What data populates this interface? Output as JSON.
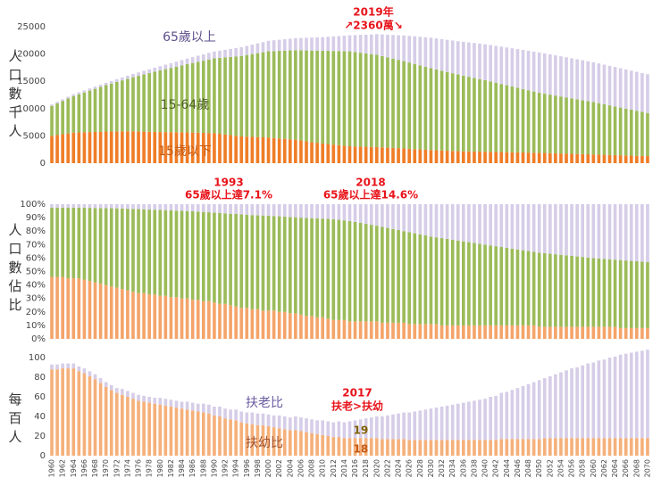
{
  "chart_data": [
    {
      "type": "bar",
      "stacked": true,
      "y_label": "人口數千人",
      "ylim": [
        0,
        25000
      ],
      "yticks": [
        0,
        5000,
        10000,
        15000,
        20000,
        25000
      ],
      "annotations": [
        "2019年",
        "↗2360萬↘"
      ],
      "series": [
        {
          "name": "15歲以下",
          "color": "#ef7d27",
          "values": [
            5000,
            5150,
            5300,
            5450,
            5600,
            5630,
            5660,
            5700,
            5730,
            5770,
            5800,
            5810,
            5820,
            5830,
            5840,
            5850,
            5820,
            5790,
            5760,
            5730,
            5700,
            5690,
            5680,
            5670,
            5660,
            5650,
            5620,
            5590,
            5560,
            5530,
            5500,
            5380,
            5260,
            5140,
            5020,
            4900,
            4860,
            4820,
            4780,
            4740,
            4700,
            4620,
            4540,
            4460,
            4380,
            4300,
            4160,
            4020,
            3880,
            3740,
            3600,
            3500,
            3400,
            3300,
            3200,
            3100,
            3070,
            3040,
            3010,
            2980,
            2950,
            2900,
            2850,
            2800,
            2750,
            2700,
            2640,
            2580,
            2520,
            2460,
            2400,
            2360,
            2320,
            2280,
            2240,
            2200,
            2180,
            2160,
            2140,
            2120,
            2100,
            2080,
            2060,
            2040,
            2020,
            2000,
            1980,
            1960,
            1940,
            1920,
            1900,
            1870,
            1840,
            1810,
            1780,
            1750,
            1720,
            1690,
            1660,
            1630,
            1600,
            1570,
            1540,
            1510,
            1480,
            1450,
            1420,
            1390,
            1360,
            1330,
            1300
          ]
        },
        {
          "name": "15-64歲",
          "color": "#9bbb59",
          "values": [
            5500,
            5800,
            6100,
            6400,
            6700,
            7000,
            7300,
            7600,
            7900,
            8200,
            8500,
            8780,
            9060,
            9340,
            9620,
            9900,
            10180,
            10460,
            10740,
            11020,
            11300,
            11540,
            11780,
            12020,
            12260,
            12500,
            12740,
            12980,
            13220,
            13460,
            13700,
            13910,
            14120,
            14330,
            14540,
            14750,
            14960,
            15170,
            15380,
            15590,
            15800,
            15920,
            16040,
            16160,
            16280,
            16400,
            16520,
            16640,
            16760,
            16880,
            17000,
            17080,
            17160,
            17240,
            17320,
            17400,
            17300,
            17200,
            17100,
            17000,
            16900,
            16720,
            16540,
            16360,
            16180,
            16000,
            15800,
            15600,
            15400,
            15200,
            15000,
            14810,
            14620,
            14430,
            14240,
            14050,
            13860,
            13670,
            13480,
            13290,
            13100,
            12890,
            12680,
            12470,
            12260,
            12050,
            11840,
            11630,
            11420,
            11210,
            11000,
            10860,
            10720,
            10580,
            10440,
            10300,
            10160,
            10020,
            9880,
            9740,
            9600,
            9430,
            9260,
            9090,
            8920,
            8750,
            8580,
            8410,
            8240,
            8070,
            7900
          ]
        },
        {
          "name": "65歲以上",
          "color": "#d6cde8",
          "values": [
            270,
            287,
            304,
            321,
            338,
            355,
            372,
            389,
            406,
            423,
            440,
            473,
            506,
            539,
            572,
            605,
            638,
            671,
            704,
            737,
            770,
            820,
            870,
            920,
            970,
            1020,
            1070,
            1120,
            1170,
            1220,
            1270,
            1335,
            1400,
            1465,
            1530,
            1595,
            1660,
            1725,
            1790,
            1855,
            1920,
            1977,
            2034,
            2091,
            2148,
            2205,
            2262,
            2319,
            2376,
            2433,
            2490,
            2580,
            2670,
            2760,
            2850,
            2940,
            3100,
            3270,
            3430,
            3610,
            3790,
            3970,
            4150,
            4330,
            4510,
            4700,
            4880,
            5060,
            5240,
            5420,
            5600,
            5700,
            5800,
            5900,
            6000,
            6100,
            6200,
            6300,
            6400,
            6500,
            6600,
            6680,
            6760,
            6840,
            6920,
            7000,
            7080,
            7160,
            7240,
            7320,
            7400,
            7390,
            7380,
            7370,
            7360,
            7350,
            7340,
            7330,
            7320,
            7310,
            7300,
            7280,
            7260,
            7240,
            7220,
            7200,
            7180,
            7160,
            7140,
            7120,
            7100
          ]
        }
      ]
    },
    {
      "type": "bar",
      "stacked": true,
      "y_label": "人口數佔比",
      "ylim": [
        0,
        100
      ],
      "yticks": [
        {
          "value": 0,
          "label": "0%"
        },
        {
          "value": 10,
          "label": "10%"
        },
        {
          "value": 20,
          "label": "20%"
        },
        {
          "value": 30,
          "label": "30%"
        },
        {
          "value": 40,
          "label": "40%"
        },
        {
          "value": 50,
          "label": "50%"
        },
        {
          "value": 60,
          "label": "60%"
        },
        {
          "value": 70,
          "label": "70%"
        },
        {
          "value": 80,
          "label": "80%"
        },
        {
          "value": 90,
          "label": "90%"
        },
        {
          "value": 100,
          "label": "100%"
        }
      ],
      "annotations": [
        "1993",
        "65歲以上達7.1%",
        "2018",
        "65歲以上達14.6%"
      ],
      "series": [
        {
          "color": "#f4a46a",
          "values": [
            46,
            46,
            46,
            45,
            45,
            45,
            44,
            43,
            42,
            41,
            40,
            39,
            38,
            37,
            36,
            35,
            34,
            34,
            33,
            33,
            32,
            32,
            31,
            31,
            30,
            30,
            29,
            29,
            28,
            28,
            27,
            26,
            26,
            25,
            24,
            23,
            23,
            22,
            22,
            21,
            21,
            21,
            20,
            20,
            19,
            19,
            18,
            17,
            17,
            16,
            16,
            15,
            14,
            14,
            14,
            13,
            13,
            13,
            13,
            13,
            13,
            12,
            12,
            12,
            12,
            12,
            11,
            11,
            11,
            11,
            11,
            11,
            10,
            10,
            10,
            10,
            10,
            10,
            10,
            10,
            10,
            10,
            10,
            10,
            10,
            10,
            10,
            10,
            10,
            10,
            9,
            9,
            9,
            9,
            9,
            9,
            9,
            9,
            9,
            9,
            9,
            9,
            9,
            9,
            9,
            8,
            8,
            8,
            8,
            8,
            8
          ]
        },
        {
          "color": "#9bbb59",
          "values": [
            51.5,
            51.5,
            51.5,
            52.5,
            52.5,
            52.4,
            53.4,
            54.3,
            55.2,
            56.1,
            57,
            58,
            58.9,
            59.8,
            60.6,
            61.5,
            62.4,
            62.2,
            63,
            62.9,
            63.7,
            63.6,
            64.4,
            64.2,
            65.1,
            64.9,
            65.7,
            65.5,
            66.2,
            66,
            66.8,
            67.5,
            67.2,
            67.9,
            68.7,
            69.4,
            69.1,
            69.9,
            69.7,
            70.6,
            70.4,
            70.2,
            71,
            70.8,
            71.5,
            71.3,
            72,
            72.8,
            72.6,
            73.4,
            73.3,
            74.1,
            74.8,
            74.5,
            74,
            74.5,
            73.8,
            73.1,
            72.4,
            71.7,
            71,
            71.2,
            70.4,
            69.6,
            68.8,
            68,
            68.2,
            67.4,
            66.6,
            65.8,
            65,
            64.4,
            64.8,
            64.2,
            63.6,
            63,
            62.4,
            61.8,
            61.2,
            60.6,
            60,
            59.4,
            58.8,
            58.2,
            57.6,
            57,
            56.4,
            55.8,
            55.2,
            54.6,
            55,
            54.6,
            54.2,
            53.8,
            53.4,
            53,
            52.6,
            52.2,
            51.8,
            51.4,
            51,
            50.7,
            50.4,
            50.1,
            49.8,
            50.5,
            50.2,
            49.9,
            49.6,
            49.3,
            49
          ]
        },
        {
          "color": "#d6cde8",
          "values": [
            2.5,
            2.5,
            2.5,
            2.5,
            2.5,
            2.6,
            2.6,
            2.7,
            2.8,
            2.9,
            3,
            3,
            3.1,
            3.2,
            3.4,
            3.5,
            3.6,
            3.8,
            4,
            4.1,
            4.3,
            4.4,
            4.6,
            4.8,
            4.9,
            5.1,
            5.3,
            5.5,
            5.8,
            6,
            6.2,
            6.5,
            6.8,
            7.1,
            7.3,
            7.6,
            7.9,
            8.1,
            8.3,
            8.4,
            8.6,
            8.8,
            9,
            9.2,
            9.5,
            9.7,
            10,
            10.2,
            10.4,
            10.6,
            10.7,
            10.9,
            11.2,
            11.5,
            12,
            12.5,
            13.2,
            13.9,
            14.6,
            15.3,
            16,
            16.8,
            17.6,
            18.4,
            19.2,
            20,
            20.8,
            21.6,
            22.4,
            23.2,
            24,
            24.6,
            25.2,
            25.8,
            26.4,
            27,
            27.6,
            28.2,
            28.8,
            29.4,
            30,
            30.6,
            31.2,
            31.8,
            32.4,
            33,
            33.6,
            34.2,
            34.8,
            35.4,
            36,
            36.4,
            36.8,
            37.2,
            37.6,
            38,
            38.4,
            38.8,
            39.2,
            39.6,
            40,
            40.3,
            40.6,
            40.9,
            41.2,
            41.5,
            41.8,
            42.1,
            42.4,
            42.7,
            43
          ]
        }
      ]
    },
    {
      "type": "bar",
      "stacked": true,
      "y_label": "每百人",
      "ylim": [
        0,
        110
      ],
      "yticks": [
        0,
        20,
        40,
        60,
        80,
        100
      ],
      "annotations": [
        "2017",
        "扶老>扶幼",
        "19",
        "18"
      ],
      "categories": [
        "1960",
        null,
        "1962",
        null,
        "1964",
        null,
        "1966",
        null,
        "1968",
        null,
        "1970",
        null,
        "1972",
        null,
        "1974",
        null,
        "1976",
        null,
        "1978",
        null,
        "1980",
        null,
        "1982",
        null,
        "1984",
        null,
        "1986",
        null,
        "1988",
        null,
        "1990",
        null,
        "1992",
        null,
        "1994",
        null,
        "1996",
        null,
        "1998",
        null,
        "2000",
        null,
        "2002",
        null,
        "2004",
        null,
        "2006",
        null,
        "2008",
        null,
        "2010",
        null,
        "2012",
        null,
        "2014",
        null,
        "2016",
        null,
        "2018",
        null,
        "2020",
        null,
        "2022",
        null,
        "2024",
        null,
        "2026",
        null,
        "2028",
        null,
        "2030",
        null,
        "2032",
        null,
        "2034",
        null,
        "2036",
        null,
        "2038",
        null,
        "2040",
        null,
        "2042",
        null,
        "2044",
        null,
        "2046",
        null,
        "2048",
        null,
        "2050",
        null,
        "2052",
        null,
        "2054",
        null,
        "2056",
        null,
        "2058",
        null,
        "2060",
        null,
        "2062",
        null,
        "2064",
        null,
        "2066",
        null,
        "2068",
        null,
        "2070"
      ],
      "series": [
        {
          "name": "扶幼比",
          "color": "#f5b07a",
          "values": [
            88,
            88,
            89,
            89,
            89,
            86,
            84,
            81,
            78,
            74,
            70,
            67,
            64,
            62,
            60,
            58,
            56,
            55,
            54,
            53,
            52,
            51,
            50,
            49,
            48,
            47,
            46,
            45,
            44,
            43,
            41,
            40,
            38,
            37,
            36,
            34,
            33,
            32,
            31,
            31,
            30,
            29,
            28,
            27,
            26,
            26,
            25,
            24,
            23,
            22,
            21,
            20,
            19,
            19,
            18,
            18,
            18,
            18,
            18,
            18,
            18,
            17,
            17,
            17,
            17,
            17,
            16,
            16,
            16,
            16,
            16,
            16,
            16,
            16,
            16,
            16,
            16,
            16,
            16,
            16,
            16,
            16,
            16,
            17,
            17,
            17,
            17,
            17,
            17,
            17,
            17,
            18,
            18,
            18,
            18,
            18,
            18,
            18,
            18,
            18,
            18,
            18,
            18,
            18,
            18,
            18,
            18,
            18,
            18,
            18,
            18
          ]
        },
        {
          "name": "扶老比",
          "color": "#d6cde8",
          "values": [
            5,
            5,
            5,
            5,
            5,
            5,
            5,
            5,
            5,
            5,
            5,
            5,
            5,
            6,
            6,
            6,
            6,
            6,
            6,
            6,
            7,
            7,
            7,
            7,
            7,
            8,
            8,
            8,
            9,
            9,
            9,
            10,
            10,
            10,
            11,
            11,
            11,
            12,
            12,
            12,
            12,
            12,
            13,
            13,
            13,
            14,
            14,
            14,
            14,
            14,
            15,
            15,
            15,
            16,
            16,
            17,
            18,
            19,
            20,
            21,
            22,
            23,
            24,
            25,
            26,
            27,
            28,
            29,
            30,
            31,
            32,
            33,
            34,
            35,
            36,
            37,
            38,
            39,
            40,
            41,
            42,
            44,
            45,
            47,
            48,
            50,
            52,
            54,
            56,
            58,
            60,
            61,
            63,
            65,
            67,
            69,
            71,
            72,
            74,
            76,
            77,
            79,
            80,
            82,
            83,
            85,
            86,
            87,
            88,
            89,
            90
          ]
        }
      ]
    }
  ]
}
